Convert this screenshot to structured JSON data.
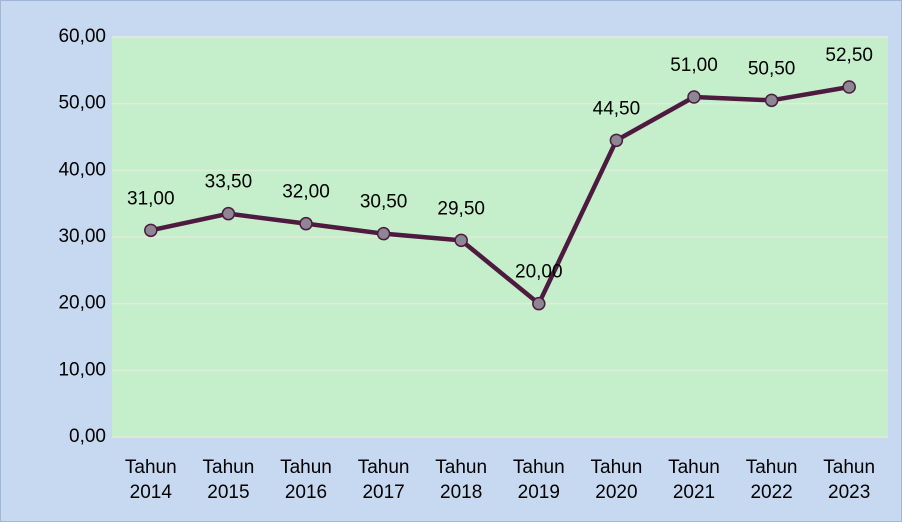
{
  "chart_data": {
    "type": "line",
    "categories": [
      "Tahun 2014",
      "Tahun 2015",
      "Tahun 2016",
      "Tahun 2017",
      "Tahun 2018",
      "Tahun 2019",
      "Tahun 2020",
      "Tahun 2021",
      "Tahun 2022",
      "Tahun 2023"
    ],
    "series": [
      {
        "color": "#4f1a40",
        "values": [
          31,
          33.5,
          32,
          30.5,
          29.5,
          20,
          44.5,
          51,
          50.5,
          52.5
        ],
        "value_labels": [
          "31,00",
          "33,50",
          "32,00",
          "30,50",
          "29,50",
          "20,00",
          "44,50",
          "51,00",
          "50,50",
          "52,50"
        ]
      }
    ],
    "ylim": [
      0,
      60
    ],
    "yticks": [
      {
        "value": 0,
        "label": "0,00"
      },
      {
        "value": 10,
        "label": "10,00"
      },
      {
        "value": 20,
        "label": "20,00"
      },
      {
        "value": 30,
        "label": "30,00"
      },
      {
        "value": 40,
        "label": "40,00"
      },
      {
        "value": 50,
        "label": "50,00"
      },
      {
        "value": 60,
        "label": "60,00"
      }
    ],
    "grid": true
  }
}
